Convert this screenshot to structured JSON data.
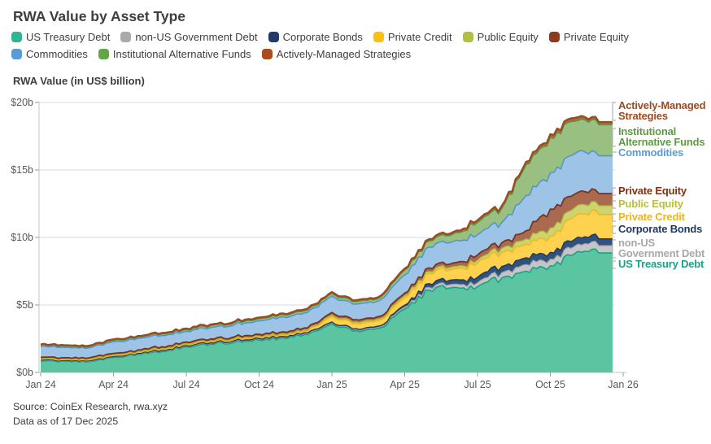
{
  "page": {
    "title": "RWA Value by Asset Type",
    "source_line1": "Source: CoinEx Research, rwa.xyz",
    "source_line2": "Data as of 17 Dec 2025"
  },
  "chart_data": {
    "type": "area",
    "stacked": true,
    "title": "RWA Value by Asset Type",
    "ylabel": "RWA Value (in US$ billion)",
    "unit": "US$ billion",
    "ylim": [
      0,
      20
    ],
    "grid": true,
    "legend_position": "top",
    "y_ticks": [
      {
        "value": 0,
        "label": "$0b"
      },
      {
        "value": 5,
        "label": "$5b"
      },
      {
        "value": 10,
        "label": "$10b"
      },
      {
        "value": 15,
        "label": "$15b"
      },
      {
        "value": 20,
        "label": "$20b"
      }
    ],
    "x_months": [
      "Jan 24",
      "Feb 24",
      "Mar 24",
      "Apr 24",
      "May 24",
      "Jun 24",
      "Jul 24",
      "Aug 24",
      "Sep 24",
      "Oct 24",
      "Nov 24",
      "Dec 24",
      "Jan 25",
      "Feb 25",
      "Mar 25",
      "Apr 25",
      "May 25",
      "Jun 25",
      "Jul 25",
      "Aug 25",
      "Sep 25",
      "Oct 25",
      "Nov 25",
      "Dec 25"
    ],
    "x_axis_ticks": [
      {
        "month_index": 0,
        "label": "Jan 24"
      },
      {
        "month_index": 3,
        "label": "Apr 24"
      },
      {
        "month_index": 6,
        "label": "Jul 24"
      },
      {
        "month_index": 9,
        "label": "Oct 24"
      },
      {
        "month_index": 12,
        "label": "Jan 25"
      },
      {
        "month_index": 15,
        "label": "Apr 25"
      },
      {
        "month_index": 18,
        "label": "Jul 25"
      },
      {
        "month_index": 21,
        "label": "Oct 25"
      },
      {
        "month_index": 24,
        "label": "Jan 26"
      }
    ],
    "series": [
      {
        "name": "US Treasury Debt",
        "label_lines": [
          "US Treasury Debt"
        ],
        "swatch": "#2cb792",
        "fill": "#5bc4a0",
        "stroke": "#17a385",
        "label_color": "#17a385",
        "values": [
          0.85,
          0.82,
          0.8,
          1.1,
          1.35,
          1.55,
          1.9,
          2.1,
          2.25,
          2.4,
          2.55,
          2.8,
          3.6,
          3.1,
          3.3,
          4.7,
          6.1,
          6.3,
          6.35,
          7.0,
          7.5,
          7.9,
          8.8,
          8.85
        ]
      },
      {
        "name": "non-US Government Debt",
        "label_lines": [
          "non-US",
          "Government Debt"
        ],
        "swatch": "#a8aaac",
        "fill": "#c3c5c7",
        "stroke": "#9a9c9e",
        "label_color": "#a6a8aa",
        "values": [
          0.04,
          0.04,
          0.04,
          0.05,
          0.05,
          0.05,
          0.05,
          0.06,
          0.06,
          0.06,
          0.07,
          0.07,
          0.08,
          0.08,
          0.09,
          0.13,
          0.2,
          0.24,
          0.3,
          0.4,
          0.5,
          0.5,
          0.55,
          0.55
        ]
      },
      {
        "name": "Corporate Bonds",
        "label_lines": [
          "Corporate Bonds"
        ],
        "swatch": "#1f3a6b",
        "fill": "#31517f",
        "stroke": "#1f3864",
        "label_color": "#1f3864",
        "values": [
          0.03,
          0.03,
          0.03,
          0.03,
          0.03,
          0.04,
          0.04,
          0.04,
          0.05,
          0.05,
          0.05,
          0.06,
          0.06,
          0.06,
          0.07,
          0.16,
          0.28,
          0.32,
          0.4,
          0.45,
          0.5,
          0.5,
          0.5,
          0.5
        ]
      },
      {
        "name": "Private Credit",
        "label_lines": [
          "Private Credit"
        ],
        "swatch": "#fdc011",
        "fill": "#fed24e",
        "stroke": "#f2b61d",
        "label_color": "#efb41a",
        "values": [
          0.06,
          0.06,
          0.06,
          0.07,
          0.07,
          0.08,
          0.08,
          0.09,
          0.09,
          0.1,
          0.11,
          0.13,
          0.42,
          0.4,
          0.42,
          0.55,
          0.75,
          0.8,
          1.05,
          1.05,
          1.0,
          1.2,
          1.7,
          1.8
        ]
      },
      {
        "name": "Public Equity",
        "label_lines": [
          "Public Equity"
        ],
        "swatch": "#b2bf3f",
        "fill": "#ccd36f",
        "stroke": "#abba37",
        "label_color": "#b5c13e",
        "values": [
          0.04,
          0.04,
          0.05,
          0.05,
          0.05,
          0.06,
          0.06,
          0.06,
          0.07,
          0.07,
          0.08,
          0.08,
          0.1,
          0.1,
          0.11,
          0.14,
          0.16,
          0.17,
          0.2,
          0.3,
          0.4,
          0.6,
          0.65,
          0.65
        ]
      },
      {
        "name": "Private Equity",
        "label_lines": [
          "Private Equity"
        ],
        "swatch": "#8e3a1f",
        "fill": "#a96a50",
        "stroke": "#7c331b",
        "label_color": "#7d2f13",
        "values": [
          0.1,
          0.1,
          0.1,
          0.11,
          0.11,
          0.12,
          0.12,
          0.13,
          0.13,
          0.14,
          0.15,
          0.16,
          0.18,
          0.17,
          0.18,
          0.2,
          0.25,
          0.28,
          0.4,
          0.4,
          0.6,
          1.4,
          1.0,
          0.9
        ]
      },
      {
        "name": "Commodities",
        "label_lines": [
          "Commodities"
        ],
        "swatch": "#5b9bd5",
        "fill": "#9dc3e6",
        "stroke": "#5093cf",
        "label_color": "#5b9bd5",
        "values": [
          0.8,
          0.76,
          0.74,
          0.86,
          0.86,
          0.84,
          0.8,
          0.85,
          0.9,
          1.0,
          1.1,
          1.15,
          1.22,
          1.15,
          1.2,
          1.35,
          1.55,
          1.6,
          1.5,
          1.5,
          2.6,
          2.7,
          3.0,
          2.8
        ]
      },
      {
        "name": "Institutional Alternative Funds",
        "label_lines": [
          "Institutional",
          "Alternative Funds"
        ],
        "swatch": "#62a744",
        "fill": "#99c080",
        "stroke": "#57973f",
        "label_color": "#5d9c44",
        "values": [
          0.1,
          0.1,
          0.1,
          0.11,
          0.11,
          0.12,
          0.13,
          0.14,
          0.15,
          0.16,
          0.17,
          0.18,
          0.2,
          0.19,
          0.2,
          0.35,
          0.45,
          0.55,
          0.9,
          1.05,
          2.3,
          2.6,
          2.4,
          2.3
        ]
      },
      {
        "name": "Actively-Managed Strategies",
        "label_lines": [
          "Actively-Managed",
          "Strategies"
        ],
        "swatch": "#a94d20",
        "fill": "#b4663b",
        "stroke": "#9c4a1f",
        "label_color": "#9c4a1f",
        "values": [
          0.06,
          0.06,
          0.06,
          0.07,
          0.07,
          0.07,
          0.08,
          0.08,
          0.08,
          0.09,
          0.09,
          0.1,
          0.1,
          0.1,
          0.1,
          0.12,
          0.13,
          0.14,
          0.18,
          0.18,
          0.2,
          0.25,
          0.25,
          0.2
        ]
      }
    ]
  }
}
